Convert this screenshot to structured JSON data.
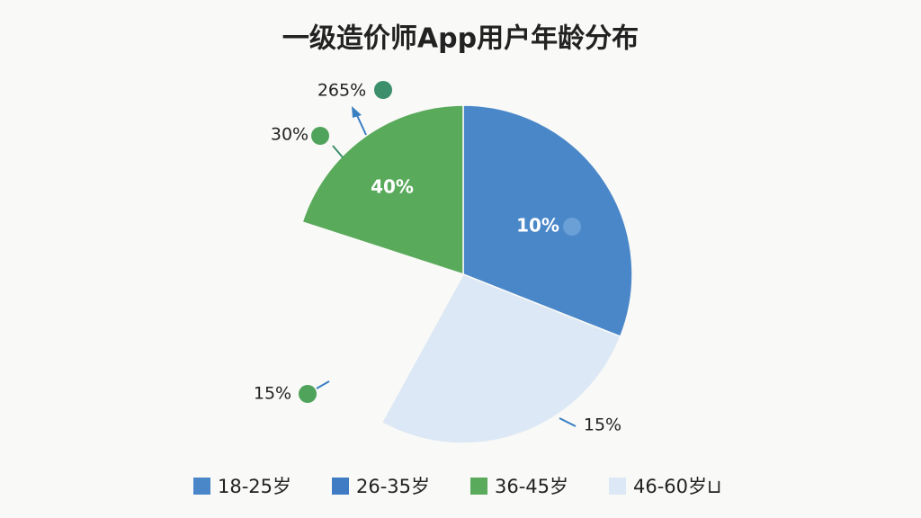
{
  "chart_data": {
    "type": "pie",
    "title": "一级造价师App用户年龄分布",
    "slices": [
      {
        "value": 31,
        "color": "#4a87c9"
      },
      {
        "value": 27,
        "color": "#dce8f5"
      },
      {
        "value": 22,
        "color": "#f9f9f7"
      },
      {
        "value": 20,
        "color": "#5aaa5c"
      }
    ],
    "annotations": [
      "10%",
      "40%",
      "265%",
      "30%",
      "15%",
      "15%"
    ],
    "legend": [
      {
        "name": "18-25岁",
        "color": "#4a87c9"
      },
      {
        "name": "26-35岁",
        "color": "#3f7cc4"
      },
      {
        "name": "36-45岁",
        "color": "#5aaa5c"
      },
      {
        "name": "46-60岁⊔",
        "color": "#dce8f5"
      }
    ]
  }
}
